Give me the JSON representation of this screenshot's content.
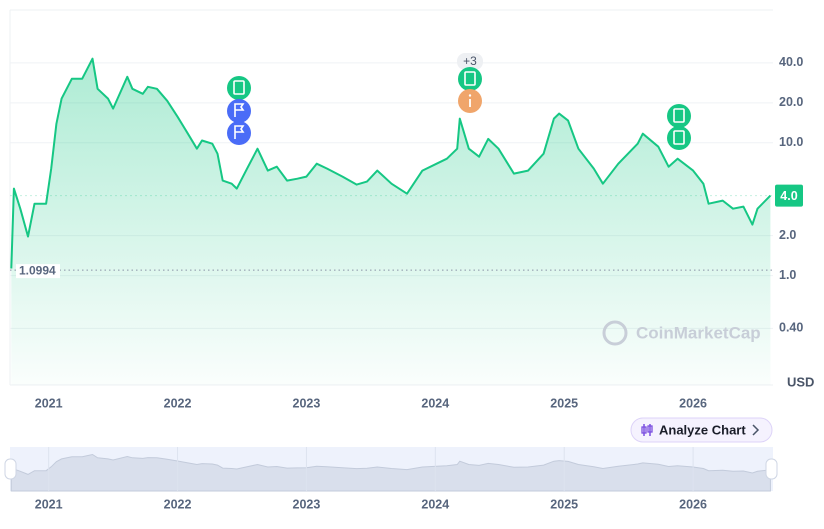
{
  "chart_data": {
    "type": "line",
    "color": "#16c784",
    "log_scale": true,
    "grid": true,
    "x": [
      2020.71,
      2020.73,
      2020.78,
      2020.84,
      2020.89,
      2020.98,
      2021.02,
      2021.06,
      2021.1,
      2021.18,
      2021.26,
      2021.34,
      2021.38,
      2021.46,
      2021.5,
      2021.61,
      2021.65,
      2021.73,
      2021.77,
      2021.84,
      2021.92,
      2022.0,
      2022.08,
      2022.15,
      2022.19,
      2022.27,
      2022.31,
      2022.35,
      2022.42,
      2022.46,
      2022.54,
      2022.62,
      2022.7,
      2022.77,
      2022.85,
      2022.93,
      2023.0,
      2023.08,
      2023.16,
      2023.28,
      2023.39,
      2023.47,
      2023.55,
      2023.66,
      2023.78,
      2023.9,
      2024.01,
      2024.09,
      2024.17,
      2024.19,
      2024.26,
      2024.34,
      2024.41,
      2024.49,
      2024.61,
      2024.72,
      2024.84,
      2024.92,
      2024.96,
      2025.03,
      2025.11,
      2025.23,
      2025.3,
      2025.42,
      2025.57,
      2025.61,
      2025.73,
      2025.81,
      2025.88,
      2026.0,
      2026.08,
      2026.12,
      2026.23,
      2026.31,
      2026.39,
      2026.46,
      2026.5,
      2026.6
    ],
    "values": [
      1.13,
      4.52,
      3.19,
      1.97,
      3.48,
      3.48,
      6.39,
      13.9,
      21.5,
      30.4,
      30.4,
      43.0,
      25.5,
      21.5,
      18.1,
      31.4,
      25.5,
      23.4,
      26.4,
      25.5,
      20.7,
      15.7,
      11.7,
      9.03,
      10.4,
      9.85,
      8.28,
      5.19,
      4.92,
      4.52,
      6.39,
      9.03,
      6.17,
      6.61,
      5.19,
      5.37,
      5.56,
      6.96,
      6.39,
      5.56,
      4.84,
      5.1,
      6.17,
      4.92,
      4.14,
      6.17,
      6.96,
      7.59,
      9.03,
      15.2,
      9.03,
      7.86,
      10.7,
      9.03,
      5.86,
      6.17,
      8.28,
      15.2,
      16.6,
      14.7,
      9.03,
      6.39,
      4.92,
      6.96,
      9.85,
      11.7,
      9.35,
      6.61,
      7.59,
      6.17,
      4.92,
      3.48,
      3.67,
      3.19,
      3.31,
      2.42,
      3.19,
      4.0
    ],
    "xlim": [
      2020.7,
      2026.62
    ],
    "xticks": [
      2021,
      2022,
      2023,
      2024,
      2025,
      2026
    ],
    "ylim": [
      0.15,
      100
    ],
    "yticks": [
      {
        "value": 0.4,
        "label": "0.40"
      },
      {
        "value": 1,
        "label": "1.0"
      },
      {
        "value": 2,
        "label": "2.0"
      },
      {
        "value": 10,
        "label": "10.0"
      },
      {
        "value": 20,
        "label": "20.0"
      },
      {
        "value": 40,
        "label": "40.0"
      }
    ],
    "current_price": {
      "value": 4.0,
      "label": "4.0"
    },
    "low": 1.0994,
    "y_axis_label": "USD",
    "event_badge": "+3",
    "watermark": "CoinMarketCap",
    "button": "Analyze Chart"
  }
}
